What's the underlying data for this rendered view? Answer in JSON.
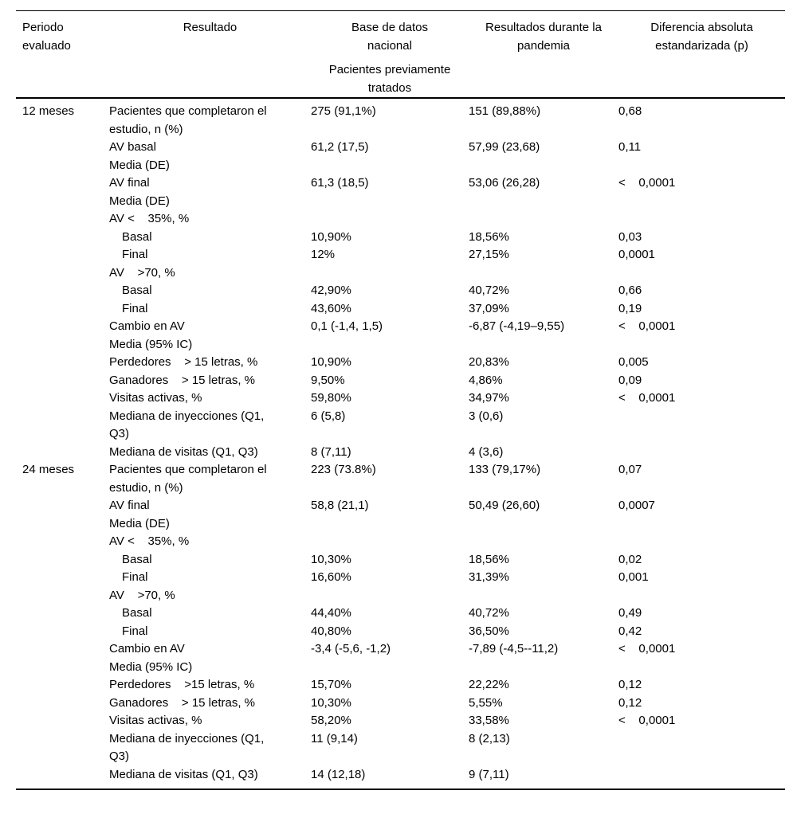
{
  "page": {
    "background_color": "#ffffff",
    "text_color": "#000000",
    "rule_color": "#000000"
  },
  "table": {
    "header": {
      "col_periodo": "Periodo\nevaluado",
      "col_resultado": "Resultado",
      "col_base": "Base de datos\nnacional",
      "col_base_sub": "Pacientes previamente\ntratados",
      "col_pandemia": "Resultados durante la\npandemia",
      "col_diferencia": "Diferencia absoluta\nestandarizada (p)"
    },
    "rows": [
      {
        "periodo": "12 meses",
        "label": "Pacientes que completaron el\nestudio, n (%)",
        "base": "275 (91,1%)",
        "pandemia": "151 (89,88%)",
        "dif": "0,68"
      },
      {
        "label": "AV basal\nMedia (DE)",
        "base": "61,2 (17,5)",
        "pandemia": "57,99 (23,68)",
        "dif": "0,11"
      },
      {
        "label": "AV final\nMedia (DE)",
        "base": "61,3 (18,5)",
        "pandemia": "53,06 (26,28)",
        "dif": "<    0,0001"
      },
      {
        "label": "AV <    35%, %",
        "base": "",
        "pandemia": "",
        "dif": ""
      },
      {
        "label": "Basal",
        "indent": true,
        "base": "10,90%",
        "pandemia": "18,56%",
        "dif": "0,03"
      },
      {
        "label": "Final",
        "indent": true,
        "base": "12%",
        "pandemia": "27,15%",
        "dif": "0,0001"
      },
      {
        "label": "AV    >70, %",
        "base": "",
        "pandemia": "",
        "dif": ""
      },
      {
        "label": "Basal",
        "indent": true,
        "base": "42,90%",
        "pandemia": "40,72%",
        "dif": "0,66"
      },
      {
        "label": "Final",
        "indent": true,
        "base": "43,60%",
        "pandemia": "37,09%",
        "dif": "0,19"
      },
      {
        "label": "Cambio en AV\nMedia (95% IC)",
        "base": "0,1 (-1,4, 1,5)",
        "pandemia": "-6,87 (-4,19–9,55)",
        "dif": "<    0,0001"
      },
      {
        "label": "Perdedores    > 15 letras, %",
        "base": "10,90%",
        "pandemia": "20,83%",
        "dif": "0,005"
      },
      {
        "label": "Ganadores    > 15 letras, %",
        "base": "9,50%",
        "pandemia": "4,86%",
        "dif": "0,09"
      },
      {
        "label": "Visitas activas, %",
        "base": "59,80%",
        "pandemia": "34,97%",
        "dif": "<    0,0001"
      },
      {
        "label": "Mediana de inyecciones (Q1,\nQ3)",
        "base": "6 (5,8)",
        "pandemia": "3 (0,6)",
        "dif": ""
      },
      {
        "label": "Mediana de visitas (Q1, Q3)",
        "base": "8 (7,11)",
        "pandemia": "4 (3,6)",
        "dif": ""
      },
      {
        "periodo": "24 meses",
        "label": "Pacientes que completaron el\nestudio, n (%)",
        "base": "223 (73.8%)",
        "pandemia": "133 (79,17%)",
        "dif": "0,07"
      },
      {
        "label": "AV final\nMedia (DE)",
        "base": "58,8 (21,1)",
        "pandemia": "50,49 (26,60)",
        "dif": "0,0007"
      },
      {
        "label": "AV <    35%, %",
        "base": "",
        "pandemia": "",
        "dif": ""
      },
      {
        "label": "Basal",
        "indent": true,
        "base": "10,30%",
        "pandemia": "18,56%",
        "dif": "0,02"
      },
      {
        "label": "Final",
        "indent": true,
        "base": "16,60%",
        "pandemia": "31,39%",
        "dif": "0,001"
      },
      {
        "label": "AV    >70, %",
        "base": "",
        "pandemia": "",
        "dif": ""
      },
      {
        "label": "Basal",
        "indent": true,
        "base": "44,40%",
        "pandemia": "40,72%",
        "dif": "0,49"
      },
      {
        "label": "Final",
        "indent": true,
        "base": "40,80%",
        "pandemia": "36,50%",
        "dif": "0,42"
      },
      {
        "label": "Cambio en AV\nMedia (95% IC)",
        "base": "-3,4 (-5,6, -1,2)",
        "pandemia": "-7,89 (-4,5--11,2)",
        "dif": "<    0,0001"
      },
      {
        "label": "Perdedores    >15 letras, %",
        "base": "15,70%",
        "pandemia": "22,22%",
        "dif": "0,12"
      },
      {
        "label": "Ganadores    > 15 letras, %",
        "base": "10,30%",
        "pandemia": "5,55%",
        "dif": "0,12"
      },
      {
        "label": "Visitas activas, %",
        "base": "58,20%",
        "pandemia": "33,58%",
        "dif": "<    0,0001"
      },
      {
        "label": "Mediana de inyecciones (Q1,\nQ3)",
        "base": "11 (9,14)",
        "pandemia": "8 (2,13)",
        "dif": ""
      },
      {
        "label": "Mediana de visitas (Q1, Q3)",
        "base": "14 (12,18)",
        "pandemia": "9 (7,11)",
        "dif": ""
      }
    ]
  }
}
